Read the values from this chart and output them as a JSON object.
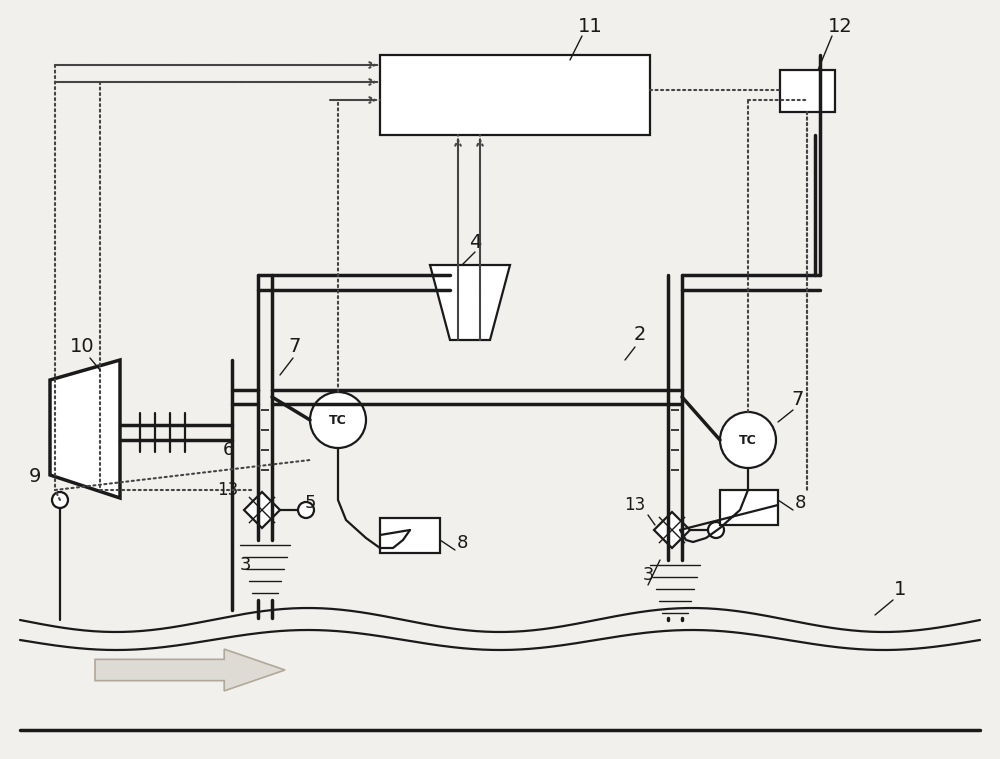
{
  "bg_color": "#f2f0ed",
  "line_color": "#1a1a1a",
  "dot_color": "#444444",
  "figsize": [
    10.0,
    7.59
  ],
  "dpi": 100
}
